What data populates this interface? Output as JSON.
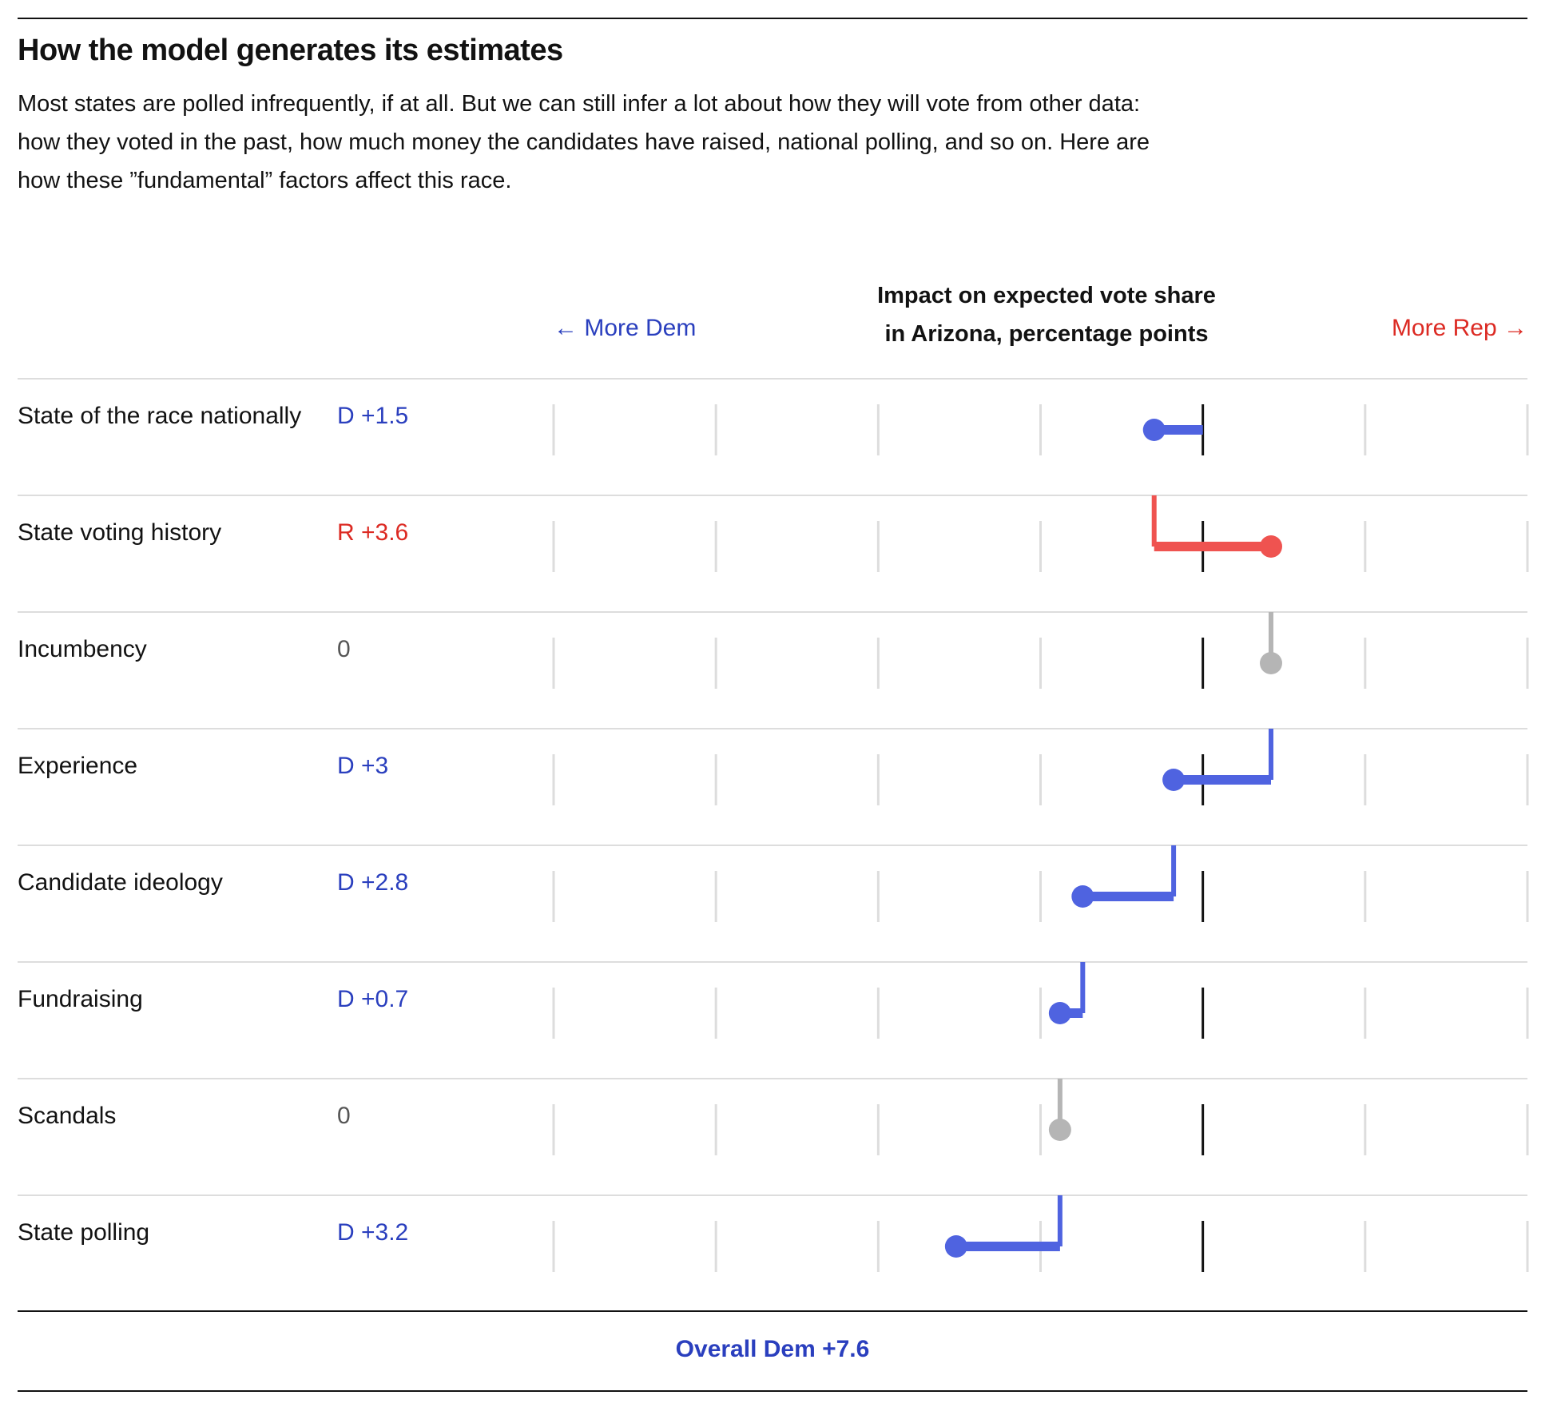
{
  "header": {
    "title": "How the model generates its estimates",
    "subtitle_lines": [
      "Most states are polled infrequently, if at all. But we can still infer a lot about how they will vote from other data:",
      "how they voted in the past, how much money the candidates have raised, national polling, and so on. Here are",
      "how these ”fundamental” factors affect this race."
    ]
  },
  "axis": {
    "title_lines": [
      "Impact on expected vote share",
      "in Arizona, percentage points"
    ],
    "left_label": "← More Dem",
    "right_label": "More Rep →"
  },
  "colors": {
    "dem": "#4f63e0",
    "rep": "#ef5350",
    "neutral": "#b5b5b5",
    "dem_text": "#2a3fbe",
    "rep_text": "#dc2a23",
    "zero_text": "#555555",
    "zero_line": "#121212",
    "tick": "#dddddd",
    "rule": "#dddddd"
  },
  "chart_data": {
    "type": "waterfall",
    "x_axis": "Impact on expected vote share in Arizona, percentage points",
    "xlim": [
      -20,
      10
    ],
    "ticks": [
      -20,
      -15,
      -10,
      -5,
      0,
      5,
      10
    ],
    "factors": [
      {
        "label": "State of the race nationally",
        "value_text": "D +1.5",
        "party": "D",
        "start": 0,
        "end": -1.5
      },
      {
        "label": "State voting history",
        "value_text": "R +3.6",
        "party": "R",
        "start": -1.5,
        "end": 2.1
      },
      {
        "label": "Incumbency",
        "value_text": "0",
        "party": "",
        "start": 2.1,
        "end": 2.1
      },
      {
        "label": "Experience",
        "value_text": "D +3",
        "party": "D",
        "start": 2.1,
        "end": -0.9
      },
      {
        "label": "Candidate ideology",
        "value_text": "D +2.8",
        "party": "D",
        "start": -0.9,
        "end": -3.7
      },
      {
        "label": "Fundraising",
        "value_text": "D +0.7",
        "party": "D",
        "start": -3.7,
        "end": -4.4
      },
      {
        "label": "Scandals",
        "value_text": "0",
        "party": "",
        "start": -4.4,
        "end": -4.4
      },
      {
        "label": "State polling",
        "value_text": "D +3.2",
        "party": "D",
        "start": -4.4,
        "end": -7.6
      }
    ]
  },
  "footer": {
    "overall": "Overall Dem +7.6"
  }
}
